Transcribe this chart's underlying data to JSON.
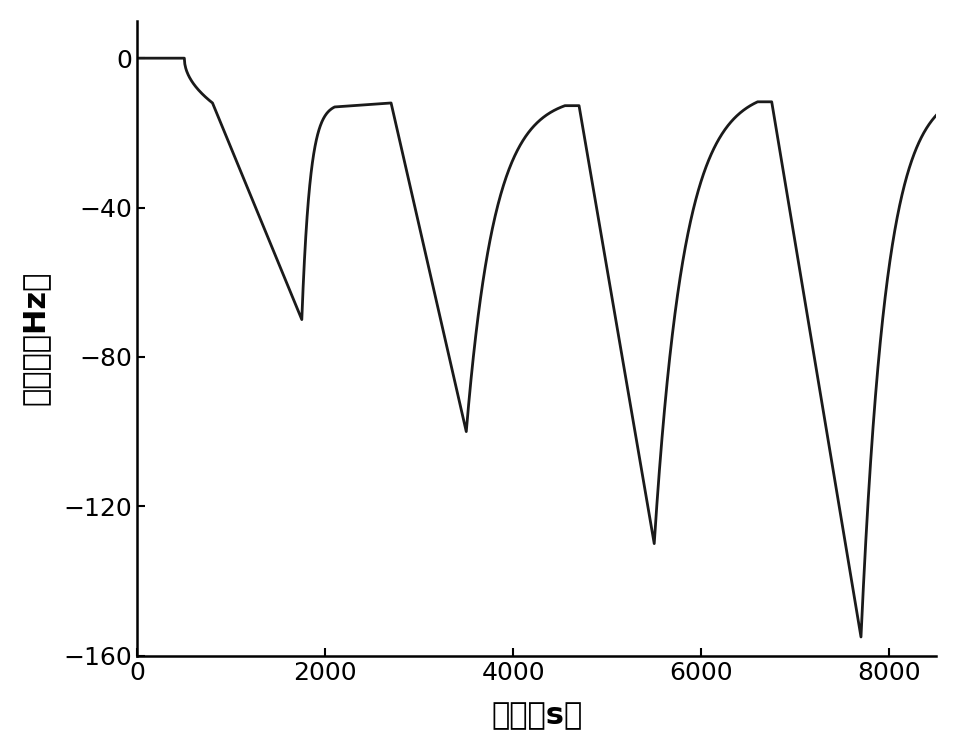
{
  "title": "",
  "xlabel": "时间（s）",
  "ylabel": "灵敏度（Hz）",
  "xlim": [
    0,
    8500
  ],
  "ylim": [
    -160,
    10
  ],
  "yticks": [
    0,
    -40,
    -80,
    -120,
    -160
  ],
  "xticks": [
    0,
    2000,
    4000,
    6000,
    8000
  ],
  "line_color": "#1a1a1a",
  "line_width": 2.0,
  "background_color": "#ffffff",
  "font_size_tick": 18,
  "font_size_label": 22
}
